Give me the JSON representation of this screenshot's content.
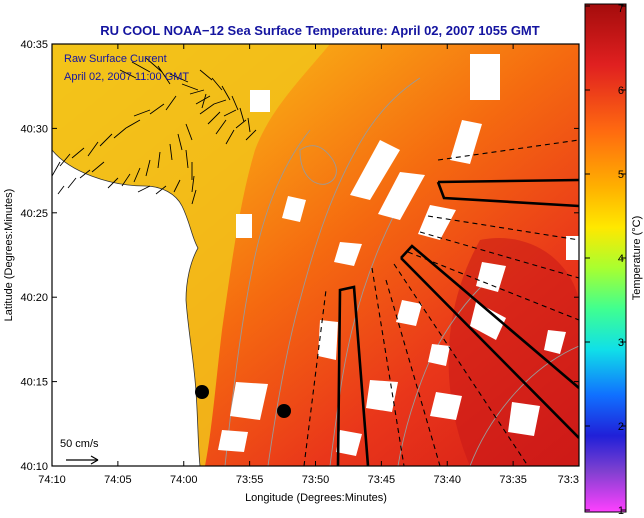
{
  "title": "RU COOL  NOAA−12  Sea Surface Temperature:  April 02, 2007 1055 GMT",
  "overlay": {
    "line1": "Raw Surface Current",
    "line2": "April 02, 2007 11:00 GMT"
  },
  "scale_label": "50 cm/s",
  "axes": {
    "xlabel": "Longitude (Degrees:Minutes)",
    "ylabel": "Latitude (Degrees:Minutes)",
    "xticks": [
      "74:10",
      "74:05",
      "74:00",
      "73:55",
      "73:50",
      "73:45",
      "73:40",
      "73:35",
      "73:3"
    ],
    "yticks": [
      "40:35",
      "40:30",
      "40:25",
      "40:20",
      "40:15",
      "40:10"
    ]
  },
  "colorbar": {
    "label": "Temperature (°C)",
    "ticks": [
      "7",
      "6",
      "5",
      "4",
      "3",
      "2",
      "1"
    ],
    "colors": [
      "#b01010",
      "#e02020",
      "#ff5a10",
      "#ffaa00",
      "#ffe800",
      "#b8ff30",
      "#40ff80",
      "#10e8e8",
      "#1070ff",
      "#2020e0",
      "#9040d0",
      "#ff40ff"
    ]
  },
  "colors": {
    "land": "#ffffff",
    "title": "#1414a0",
    "vector": "#000000",
    "isobath": "#9a9a9a"
  }
}
